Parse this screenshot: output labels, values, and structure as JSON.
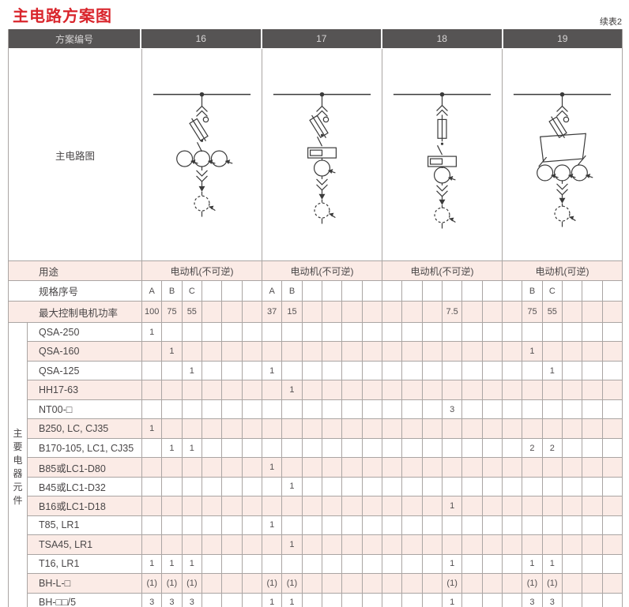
{
  "page": {
    "title": "主电路方案图",
    "continuation_note": "续表2"
  },
  "colors": {
    "title_red": "#d9252c",
    "header_bg": "#565454",
    "row_pink": "#fbebe6",
    "grid_line": "#aaa5a3"
  },
  "table": {
    "header": {
      "scheme_label": "方案编号",
      "schemes": [
        "16",
        "17",
        "18",
        "19"
      ]
    },
    "diagram_row": {
      "label": "主电路图"
    },
    "usage_row": {
      "label": "用途",
      "values": [
        "电动机(不可逆)",
        "电动机(不可逆)",
        "电动机(不可逆)",
        "电动机(可逆)"
      ]
    },
    "spec_row": {
      "label": "规格序号",
      "cells": [
        [
          "A",
          "B",
          "C",
          "",
          "",
          ""
        ],
        [
          "A",
          "B",
          "",
          "",
          "",
          ""
        ],
        [
          "",
          "",
          "",
          "",
          "",
          ""
        ],
        [
          "",
          "B",
          "C",
          "",
          "",
          ""
        ]
      ]
    },
    "power_row": {
      "label": "最大控制电机功率",
      "cells": [
        [
          "100",
          "75",
          "55",
          "",
          "",
          ""
        ],
        [
          "37",
          "15",
          "",
          "",
          "",
          ""
        ],
        [
          "",
          "",
          "",
          "7.5",
          "",
          ""
        ],
        [
          "",
          "75",
          "55",
          "",
          "",
          ""
        ]
      ]
    },
    "components": {
      "side_label": "主要电器元件",
      "rows": [
        {
          "label": "QSA-250",
          "cells": [
            [
              "1",
              "",
              "",
              "",
              "",
              ""
            ],
            [
              "",
              "",
              "",
              "",
              "",
              ""
            ],
            [
              "",
              "",
              "",
              "",
              "",
              ""
            ],
            [
              "",
              "",
              "",
              "",
              "",
              ""
            ]
          ]
        },
        {
          "label": "QSA-160",
          "cells": [
            [
              "",
              "1",
              "",
              "",
              "",
              ""
            ],
            [
              "",
              "",
              "",
              "",
              "",
              ""
            ],
            [
              "",
              "",
              "",
              "",
              "",
              ""
            ],
            [
              "",
              "1",
              "",
              "",
              "",
              ""
            ]
          ]
        },
        {
          "label": "QSA-125",
          "cells": [
            [
              "",
              "",
              "1",
              "",
              "",
              ""
            ],
            [
              "1",
              "",
              "",
              "",
              "",
              ""
            ],
            [
              "",
              "",
              "",
              "",
              "",
              ""
            ],
            [
              "",
              "",
              "1",
              "",
              "",
              ""
            ]
          ]
        },
        {
          "label": "HH17-63",
          "cells": [
            [
              "",
              "",
              "",
              "",
              "",
              ""
            ],
            [
              "",
              "1",
              "",
              "",
              "",
              ""
            ],
            [
              "",
              "",
              "",
              "",
              "",
              ""
            ],
            [
              "",
              "",
              "",
              "",
              "",
              ""
            ]
          ]
        },
        {
          "label": "NT00-□",
          "cells": [
            [
              "",
              "",
              "",
              "",
              "",
              ""
            ],
            [
              "",
              "",
              "",
              "",
              "",
              ""
            ],
            [
              "",
              "",
              "",
              "3",
              "",
              ""
            ],
            [
              "",
              "",
              "",
              "",
              "",
              ""
            ]
          ]
        },
        {
          "label": "B250, LC, CJ35",
          "cells": [
            [
              "1",
              "",
              "",
              "",
              "",
              ""
            ],
            [
              "",
              "",
              "",
              "",
              "",
              ""
            ],
            [
              "",
              "",
              "",
              "",
              "",
              ""
            ],
            [
              "",
              "",
              "",
              "",
              "",
              ""
            ]
          ]
        },
        {
          "label": "B170-105, LC1, CJ35",
          "cells": [
            [
              "",
              "1",
              "1",
              "",
              "",
              ""
            ],
            [
              "",
              "",
              "",
              "",
              "",
              ""
            ],
            [
              "",
              "",
              "",
              "",
              "",
              ""
            ],
            [
              "",
              "2",
              "2",
              "",
              "",
              ""
            ]
          ]
        },
        {
          "label": "B85或LC1-D80",
          "cells": [
            [
              "",
              "",
              "",
              "",
              "",
              ""
            ],
            [
              "1",
              "",
              "",
              "",
              "",
              ""
            ],
            [
              "",
              "",
              "",
              "",
              "",
              ""
            ],
            [
              "",
              "",
              "",
              "",
              "",
              ""
            ]
          ]
        },
        {
          "label": "B45或LC1-D32",
          "cells": [
            [
              "",
              "",
              "",
              "",
              "",
              ""
            ],
            [
              "",
              "1",
              "",
              "",
              "",
              ""
            ],
            [
              "",
              "",
              "",
              "",
              "",
              ""
            ],
            [
              "",
              "",
              "",
              "",
              "",
              ""
            ]
          ]
        },
        {
          "label": "B16或LC1-D18",
          "cells": [
            [
              "",
              "",
              "",
              "",
              "",
              ""
            ],
            [
              "",
              "",
              "",
              "",
              "",
              ""
            ],
            [
              "",
              "",
              "",
              "1",
              "",
              ""
            ],
            [
              "",
              "",
              "",
              "",
              "",
              ""
            ]
          ]
        },
        {
          "label": "T85, LR1",
          "cells": [
            [
              "",
              "",
              "",
              "",
              "",
              ""
            ],
            [
              "1",
              "",
              "",
              "",
              "",
              ""
            ],
            [
              "",
              "",
              "",
              "",
              "",
              ""
            ],
            [
              "",
              "",
              "",
              "",
              "",
              ""
            ]
          ]
        },
        {
          "label": "TSA45, LR1",
          "cells": [
            [
              "",
              "",
              "",
              "",
              "",
              ""
            ],
            [
              "",
              "1",
              "",
              "",
              "",
              ""
            ],
            [
              "",
              "",
              "",
              "",
              "",
              ""
            ],
            [
              "",
              "",
              "",
              "",
              "",
              ""
            ]
          ]
        },
        {
          "label": "T16, LR1",
          "cells": [
            [
              "1",
              "1",
              "1",
              "",
              "",
              ""
            ],
            [
              "",
              "",
              "",
              "",
              "",
              ""
            ],
            [
              "",
              "",
              "",
              "1",
              "",
              ""
            ],
            [
              "",
              "1",
              "1",
              "",
              "",
              ""
            ]
          ]
        },
        {
          "label": "BH-L-□",
          "cells": [
            [
              "(1)",
              "(1)",
              "(1)",
              "",
              "",
              ""
            ],
            [
              "(1)",
              "(1)",
              "",
              "",
              "",
              ""
            ],
            [
              "",
              "",
              "",
              "(1)",
              "",
              ""
            ],
            [
              "",
              "(1)",
              "(1)",
              "",
              "",
              ""
            ]
          ]
        },
        {
          "label": "BH-□□/5",
          "cells": [
            [
              "3",
              "3",
              "3",
              "",
              "",
              ""
            ],
            [
              "1",
              "1",
              "",
              "",
              "",
              ""
            ],
            [
              "",
              "",
              "",
              "1",
              "",
              ""
            ],
            [
              "",
              "3",
              "3",
              "",
              "",
              ""
            ]
          ]
        }
      ]
    }
  }
}
